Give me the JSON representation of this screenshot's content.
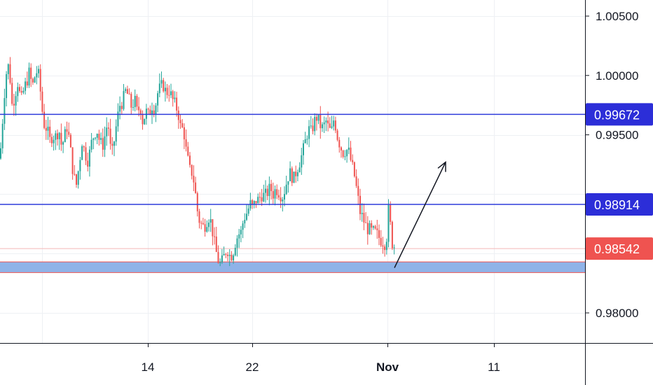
{
  "chart_data": {
    "type": "candlestick",
    "title": "",
    "xlabel": "",
    "ylabel": "",
    "ylim": [
      0.9774,
      1.0074
    ],
    "x_ticks": [
      "14",
      "22",
      "Nov",
      "11"
    ],
    "y_ticks": [
      "1.00500",
      "1.00000",
      "0.99500",
      "0.98000"
    ],
    "grid": true,
    "colors": {
      "up": "#26a69a",
      "down": "#ef5350",
      "level_line": "#2f3bdb",
      "tag_blue": "#2c2ed8",
      "tag_red": "#ef5350",
      "zone": "#8fb3e8"
    },
    "levels": [
      {
        "label": "0.99672",
        "value": 0.99672
      },
      {
        "label": "0.98914",
        "value": 0.98914
      }
    ],
    "last_price": {
      "label": "0.98542",
      "value": 0.98542
    },
    "support_zone": [
      0.9834,
      0.9843
    ],
    "close_path": [
      [
        0,
        0.993
      ],
      [
        4,
        0.9965
      ],
      [
        8,
        1.0
      ],
      [
        13,
        1.001
      ],
      [
        17,
        0.9975
      ],
      [
        21,
        0.9982
      ],
      [
        25,
        0.9995
      ],
      [
        30,
        0.9978
      ],
      [
        34,
        0.9988
      ],
      [
        38,
        0.9995
      ],
      [
        42,
        1.0003
      ],
      [
        46,
        0.999
      ],
      [
        50,
        1.0
      ],
      [
        54,
        1.0005
      ],
      [
        58,
        0.9985
      ],
      [
        62,
        0.996
      ],
      [
        67,
        0.9955
      ],
      [
        71,
        0.9945
      ],
      [
        75,
        0.995
      ],
      [
        79,
        0.9948
      ],
      [
        84,
        0.9955
      ],
      [
        88,
        0.994
      ],
      [
        92,
        0.9948
      ],
      [
        96,
        0.9958
      ],
      [
        100,
        0.994
      ],
      [
        105,
        0.9915
      ],
      [
        109,
        0.9908
      ],
      [
        113,
        0.9925
      ],
      [
        117,
        0.9945
      ],
      [
        121,
        0.9935
      ],
      [
        126,
        0.9928
      ],
      [
        130,
        0.9942
      ],
      [
        134,
        0.995
      ],
      [
        138,
        0.9955
      ],
      [
        142,
        0.9945
      ],
      [
        146,
        0.994
      ],
      [
        150,
        0.995
      ],
      [
        154,
        0.9962
      ],
      [
        159,
        0.993
      ],
      [
        163,
        0.9945
      ],
      [
        167,
        0.9962
      ],
      [
        171,
        0.9975
      ],
      [
        175,
        0.9978
      ],
      [
        180,
        0.9988
      ],
      [
        184,
        0.998
      ],
      [
        188,
        0.9973
      ],
      [
        192,
        0.998
      ],
      [
        196,
        0.9968
      ],
      [
        200,
        0.9975
      ],
      [
        204,
        0.996
      ],
      [
        208,
        0.997
      ],
      [
        212,
        0.9966
      ],
      [
        217,
        0.9975
      ],
      [
        221,
        0.9972
      ],
      [
        225,
        0.9985
      ],
      [
        229,
        0.999
      ],
      [
        233,
        0.9992
      ],
      [
        237,
        0.9985
      ],
      [
        241,
        0.9988
      ],
      [
        246,
        0.998
      ],
      [
        250,
        0.9975
      ],
      [
        254,
        0.997
      ],
      [
        258,
        0.9955
      ],
      [
        262,
        0.9955
      ],
      [
        266,
        0.9935
      ],
      [
        271,
        0.992
      ],
      [
        275,
        0.9918
      ],
      [
        279,
        0.99
      ],
      [
        283,
        0.988
      ],
      [
        287,
        0.9875
      ],
      [
        291,
        0.9872
      ],
      [
        295,
        0.9878
      ],
      [
        299,
        0.9882
      ],
      [
        303,
        0.987
      ],
      [
        307,
        0.9855
      ],
      [
        311,
        0.9845
      ],
      [
        315,
        0.984
      ],
      [
        320,
        0.9848
      ],
      [
        324,
        0.9855
      ],
      [
        328,
        0.9848
      ],
      [
        332,
        0.985
      ],
      [
        336,
        0.986
      ],
      [
        340,
        0.9866
      ],
      [
        344,
        0.9868
      ],
      [
        348,
        0.988
      ],
      [
        353,
        0.9885
      ],
      [
        357,
        0.9892
      ],
      [
        361,
        0.9888
      ],
      [
        365,
        0.9895
      ],
      [
        369,
        0.9895
      ],
      [
        373,
        0.99
      ],
      [
        378,
        0.9898
      ],
      [
        382,
        0.9902
      ],
      [
        386,
        0.9905
      ],
      [
        390,
        0.99
      ],
      [
        394,
        0.9905
      ],
      [
        398,
        0.9902
      ],
      [
        403,
        0.9898
      ],
      [
        407,
        0.9905
      ],
      [
        411,
        0.9915
      ],
      [
        415,
        0.9918
      ],
      [
        419,
        0.9912
      ],
      [
        423,
        0.992
      ],
      [
        428,
        0.9928
      ],
      [
        432,
        0.9935
      ],
      [
        436,
        0.9945
      ],
      [
        440,
        0.9955
      ],
      [
        444,
        0.9952
      ],
      [
        448,
        0.996
      ],
      [
        452,
        0.9965
      ],
      [
        457,
        0.9958
      ],
      [
        461,
        0.9955
      ],
      [
        465,
        0.9962
      ],
      [
        469,
        0.9955
      ],
      [
        473,
        0.9952
      ],
      [
        477,
        0.9965
      ],
      [
        481,
        0.995
      ],
      [
        486,
        0.994
      ],
      [
        490,
        0.9935
      ],
      [
        494,
        0.9938
      ],
      [
        498,
        0.9935
      ],
      [
        502,
        0.9925
      ],
      [
        506,
        0.9915
      ],
      [
        510,
        0.99
      ],
      [
        514,
        0.9885
      ],
      [
        519,
        0.9878
      ],
      [
        523,
        0.9872
      ],
      [
        527,
        0.987
      ],
      [
        531,
        0.9868
      ],
      [
        535,
        0.9868
      ],
      [
        539,
        0.9865
      ],
      [
        543,
        0.9862
      ],
      [
        547,
        0.986
      ],
      [
        551,
        0.9858
      ],
      [
        555,
        0.989
      ],
      [
        559,
        0.986
      ],
      [
        564,
        0.9855
      ],
      [
        566,
        0.98542
      ]
    ],
    "arrow": {
      "from": [
        563,
        0.9838
      ],
      "to": [
        636,
        0.9927
      ]
    }
  }
}
